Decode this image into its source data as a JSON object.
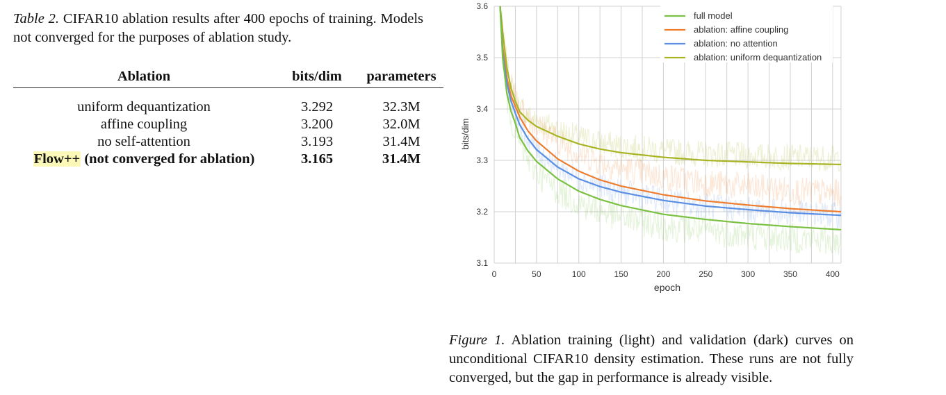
{
  "table_caption": {
    "label": "Table 2.",
    "text": "CIFAR10 ablation results after 400 epochs of training. Models not converged for the purposes of ablation study."
  },
  "table": {
    "headers": [
      "Ablation",
      "bits/dim",
      "parameters"
    ],
    "rows": [
      {
        "name": "uniform dequantization",
        "bits": "3.292",
        "params": "32.3M"
      },
      {
        "name": "affine coupling",
        "bits": "3.200",
        "params": "32.0M"
      },
      {
        "name": "no self-attention",
        "bits": "3.193",
        "params": "31.4M"
      },
      {
        "name_highlight": "Flow++",
        "name_rest": "(not converged for ablation)",
        "bits": "3.165",
        "params": "31.4M"
      }
    ]
  },
  "chart_data": {
    "type": "line",
    "title": "",
    "xlabel": "epoch",
    "ylabel": "bits/dim",
    "xlim": [
      0,
      410
    ],
    "ylim": [
      3.1,
      3.6
    ],
    "xticks": [
      "0",
      "50",
      "100",
      "150",
      "200",
      "250",
      "300",
      "350",
      "400"
    ],
    "yticks": [
      "3.1",
      "3.2",
      "3.3",
      "3.4",
      "3.5",
      "3.6"
    ],
    "grid": true,
    "legend_position": "top-right",
    "series": [
      {
        "name": "full model",
        "color": "#7ac143",
        "x": [
          7,
          10,
          15,
          20,
          25,
          30,
          40,
          50,
          75,
          100,
          125,
          150,
          200,
          250,
          300,
          350,
          410
        ],
        "y": [
          3.6,
          3.5,
          3.43,
          3.395,
          3.372,
          3.345,
          3.318,
          3.298,
          3.264,
          3.24,
          3.224,
          3.212,
          3.195,
          3.185,
          3.177,
          3.171,
          3.165
        ]
      },
      {
        "name": "ablation: affine coupling",
        "color": "#ef7d2d",
        "x": [
          7,
          10,
          15,
          20,
          25,
          30,
          40,
          50,
          75,
          100,
          125,
          150,
          200,
          250,
          300,
          350,
          410
        ],
        "y": [
          3.6,
          3.52,
          3.46,
          3.425,
          3.405,
          3.385,
          3.357,
          3.338,
          3.303,
          3.279,
          3.262,
          3.25,
          3.233,
          3.221,
          3.213,
          3.206,
          3.2
        ]
      },
      {
        "name": "ablation: no attention",
        "color": "#5b8fe3",
        "x": [
          7,
          10,
          15,
          20,
          25,
          30,
          40,
          50,
          75,
          100,
          125,
          150,
          200,
          250,
          300,
          350,
          410
        ],
        "y": [
          3.6,
          3.51,
          3.45,
          3.415,
          3.392,
          3.37,
          3.342,
          3.321,
          3.287,
          3.264,
          3.249,
          3.238,
          3.222,
          3.211,
          3.204,
          3.198,
          3.193
        ]
      },
      {
        "name": "ablation: uniform dequantization",
        "color": "#a8b423",
        "x": [
          7,
          10,
          15,
          20,
          25,
          30,
          40,
          50,
          75,
          100,
          125,
          150,
          200,
          250,
          300,
          350,
          410
        ],
        "y": [
          3.6,
          3.55,
          3.48,
          3.44,
          3.415,
          3.395,
          3.378,
          3.366,
          3.347,
          3.332,
          3.322,
          3.315,
          3.306,
          3.3,
          3.297,
          3.294,
          3.292
        ]
      }
    ]
  },
  "figure_caption": {
    "label": "Figure 1.",
    "text": "Ablation training (light) and validation (dark) curves on unconditional CIFAR10 density estimation. These runs are not fully converged, but the gap in performance is already visible."
  }
}
